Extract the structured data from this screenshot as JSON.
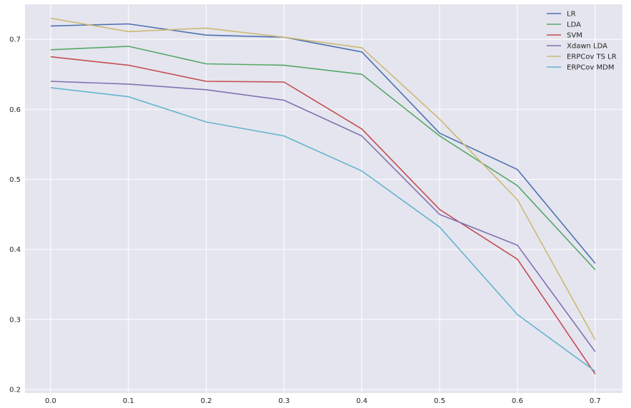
{
  "chart_data": {
    "type": "line",
    "title": "",
    "xlabel": "",
    "ylabel": "",
    "x": [
      0.0,
      0.1,
      0.2,
      0.3,
      0.4,
      0.5,
      0.6,
      0.7
    ],
    "xticks": [
      "0.0",
      "0.1",
      "0.2",
      "0.3",
      "0.4",
      "0.5",
      "0.6",
      "0.7"
    ],
    "yticks": [
      "0.2",
      "0.3",
      "0.4",
      "0.5",
      "0.6",
      "0.7"
    ],
    "xlim": [
      -0.033,
      0.735
    ],
    "ylim": [
      0.195,
      0.75
    ],
    "grid": true,
    "legend_position": "top-right",
    "background": "#e5e5ef",
    "series": [
      {
        "name": "LR",
        "color": "#4c72b0",
        "values": [
          0.719,
          0.722,
          0.706,
          0.703,
          0.682,
          0.566,
          0.514,
          0.38
        ]
      },
      {
        "name": "LDA",
        "color": "#55a868",
        "values": [
          0.685,
          0.69,
          0.665,
          0.663,
          0.65,
          0.562,
          0.491,
          0.371
        ]
      },
      {
        "name": "SVM",
        "color": "#c44e52",
        "values": [
          0.675,
          0.663,
          0.64,
          0.639,
          0.572,
          0.457,
          0.386,
          0.222
        ]
      },
      {
        "name": "Xdawn LDA",
        "color": "#8172b2",
        "values": [
          0.64,
          0.636,
          0.628,
          0.613,
          0.562,
          0.45,
          0.406,
          0.254
        ]
      },
      {
        "name": "ERPCov TS LR",
        "color": "#ccb974",
        "values": [
          0.73,
          0.711,
          0.716,
          0.703,
          0.688,
          0.586,
          0.471,
          0.271
        ]
      },
      {
        "name": "ERPCov MDM",
        "color": "#64b5cd",
        "values": [
          0.631,
          0.618,
          0.582,
          0.562,
          0.512,
          0.432,
          0.307,
          0.226
        ]
      }
    ]
  }
}
